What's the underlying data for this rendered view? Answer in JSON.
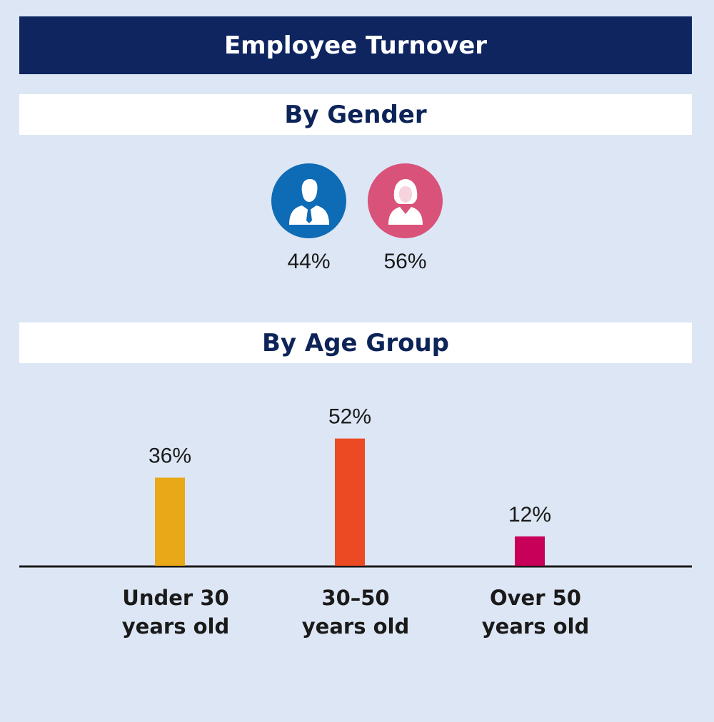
{
  "header": {
    "title": "Employee Turnover"
  },
  "gender_section": {
    "title": "By Gender",
    "items": [
      {
        "icon": "male-person-icon",
        "value": "44%",
        "color": "#0e6bb5"
      },
      {
        "icon": "female-person-icon",
        "value": "56%",
        "color": "#d9527a"
      }
    ]
  },
  "age_section": {
    "title": "By Age Group"
  },
  "chart_data": {
    "type": "bar",
    "categories": [
      [
        "Under 30",
        "years old"
      ],
      [
        "30–50",
        "years old"
      ],
      [
        "Over 50",
        "years old"
      ]
    ],
    "values": [
      36,
      52,
      12
    ],
    "value_labels": [
      "36%",
      "52%",
      "12%"
    ],
    "colors": [
      "#e8a818",
      "#ec4a23",
      "#c8005a"
    ],
    "ylim": [
      0,
      60
    ],
    "grid": false,
    "title": "",
    "xlabel": "",
    "ylabel": ""
  }
}
